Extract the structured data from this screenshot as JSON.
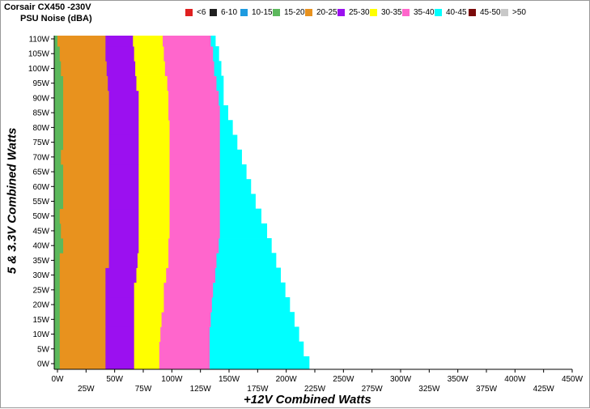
{
  "chart_data": {
    "type": "heatmap",
    "title": "Corsair CX450 -230V",
    "subtitle": "PSU Noise (dBA)",
    "xlabel": "+12V Combined Watts",
    "ylabel": "5 & 3.3V Combined Watts",
    "xlim": [
      0,
      450
    ],
    "ylim": [
      0,
      110
    ],
    "x_ticks": [
      {
        "value": 0,
        "label": "0W"
      },
      {
        "value": 25,
        "label": "25W"
      },
      {
        "value": 50,
        "label": "50W"
      },
      {
        "value": 75,
        "label": "75W"
      },
      {
        "value": 100,
        "label": "100W"
      },
      {
        "value": 125,
        "label": "125W"
      },
      {
        "value": 150,
        "label": "150W"
      },
      {
        "value": 175,
        "label": "175W"
      },
      {
        "value": 200,
        "label": "200W"
      },
      {
        "value": 225,
        "label": "225W"
      },
      {
        "value": 250,
        "label": "250W"
      },
      {
        "value": 275,
        "label": "275W"
      },
      {
        "value": 300,
        "label": "300W"
      },
      {
        "value": 325,
        "label": "325W"
      },
      {
        "value": 350,
        "label": "350W"
      },
      {
        "value": 375,
        "label": "375W"
      },
      {
        "value": 400,
        "label": "400W"
      },
      {
        "value": 425,
        "label": "425W"
      },
      {
        "value": 450,
        "label": "450W"
      }
    ],
    "y_ticks": [
      {
        "value": 0,
        "label": "0W"
      },
      {
        "value": 5,
        "label": "5W"
      },
      {
        "value": 10,
        "label": "10W"
      },
      {
        "value": 15,
        "label": "15W"
      },
      {
        "value": 20,
        "label": "20W"
      },
      {
        "value": 25,
        "label": "25W"
      },
      {
        "value": 30,
        "label": "30W"
      },
      {
        "value": 35,
        "label": "35W"
      },
      {
        "value": 40,
        "label": "40W"
      },
      {
        "value": 45,
        "label": "45W"
      },
      {
        "value": 50,
        "label": "50W"
      },
      {
        "value": 55,
        "label": "55W"
      },
      {
        "value": 60,
        "label": "60W"
      },
      {
        "value": 65,
        "label": "65W"
      },
      {
        "value": 70,
        "label": "70W"
      },
      {
        "value": 75,
        "label": "75W"
      },
      {
        "value": 80,
        "label": "80W"
      },
      {
        "value": 85,
        "label": "85W"
      },
      {
        "value": 90,
        "label": "90W"
      },
      {
        "value": 95,
        "label": "95W"
      },
      {
        "value": 100,
        "label": "100W"
      },
      {
        "value": 105,
        "label": "105W"
      },
      {
        "value": 110,
        "label": "110W"
      }
    ],
    "legend": [
      {
        "label": "<6",
        "color": "#e02020"
      },
      {
        "label": "6-10",
        "color": "#202020"
      },
      {
        "label": "10-15",
        "color": "#1e9be0"
      },
      {
        "label": "15-20",
        "color": "#5cb85c"
      },
      {
        "label": "20-25",
        "color": "#e8921e"
      },
      {
        "label": "25-30",
        "color": "#9b10f0"
      },
      {
        "label": "30-35",
        "color": "#ffff00"
      },
      {
        "label": "35-40",
        "color": "#ff66cc"
      },
      {
        "label": "40-45",
        "color": "#00ffff"
      },
      {
        "label": "45-50",
        "color": "#7a0a0a"
      },
      {
        "label": ">50",
        "color": "#c8c8c8"
      }
    ],
    "grid": false,
    "legend_position": "top",
    "band_colors": [
      "#5cb85c",
      "#e8921e",
      "#9b10f0",
      "#ffff00",
      "#ff66cc",
      "#00ffff"
    ],
    "band_ranges": [
      "15-20",
      "20-25",
      "25-30",
      "30-35",
      "35-40",
      "40-45"
    ],
    "rows": [
      {
        "y": 0,
        "b": [
          2,
          42,
          67,
          89,
          133,
          220
        ]
      },
      {
        "y": 5,
        "b": [
          2,
          42,
          67,
          89,
          133,
          215
        ]
      },
      {
        "y": 10,
        "b": [
          2,
          42,
          67,
          90,
          133,
          211
        ]
      },
      {
        "y": 15,
        "b": [
          2,
          42,
          67,
          91,
          134,
          207
        ]
      },
      {
        "y": 20,
        "b": [
          2,
          42,
          67,
          93,
          135,
          203
        ]
      },
      {
        "y": 25,
        "b": [
          2,
          42,
          67,
          93,
          136,
          199
        ]
      },
      {
        "y": 30,
        "b": [
          2,
          42,
          69,
          95,
          138,
          195
        ]
      },
      {
        "y": 35,
        "b": [
          2,
          45,
          70,
          97,
          139,
          191
        ]
      },
      {
        "y": 40,
        "b": [
          5,
          45,
          71,
          97,
          141,
          187
        ]
      },
      {
        "y": 45,
        "b": [
          3,
          45,
          71,
          98,
          142,
          183
        ]
      },
      {
        "y": 50,
        "b": [
          2,
          45,
          71,
          98,
          142,
          178
        ]
      },
      {
        "y": 55,
        "b": [
          5,
          45,
          71,
          98,
          142,
          173
        ]
      },
      {
        "y": 60,
        "b": [
          5,
          45,
          71,
          98,
          142,
          169
        ]
      },
      {
        "y": 65,
        "b": [
          5,
          45,
          71,
          98,
          142,
          165
        ]
      },
      {
        "y": 70,
        "b": [
          3,
          45,
          71,
          98,
          142,
          161
        ]
      },
      {
        "y": 75,
        "b": [
          5,
          45,
          71,
          98,
          142,
          157
        ]
      },
      {
        "y": 80,
        "b": [
          5,
          45,
          71,
          98,
          142,
          153
        ]
      },
      {
        "y": 85,
        "b": [
          5,
          45,
          71,
          97,
          142,
          149
        ]
      },
      {
        "y": 90,
        "b": [
          5,
          45,
          71,
          97,
          141,
          145
        ]
      },
      {
        "y": 95,
        "b": [
          5,
          44,
          69,
          96,
          139,
          145
        ]
      },
      {
        "y": 100,
        "b": [
          3,
          43,
          68,
          94,
          137,
          143
        ]
      },
      {
        "y": 105,
        "b": [
          2,
          42,
          67,
          93,
          136,
          141
        ]
      },
      {
        "y": 110,
        "b": [
          0,
          42,
          66,
          92,
          134,
          138
        ]
      }
    ]
  }
}
